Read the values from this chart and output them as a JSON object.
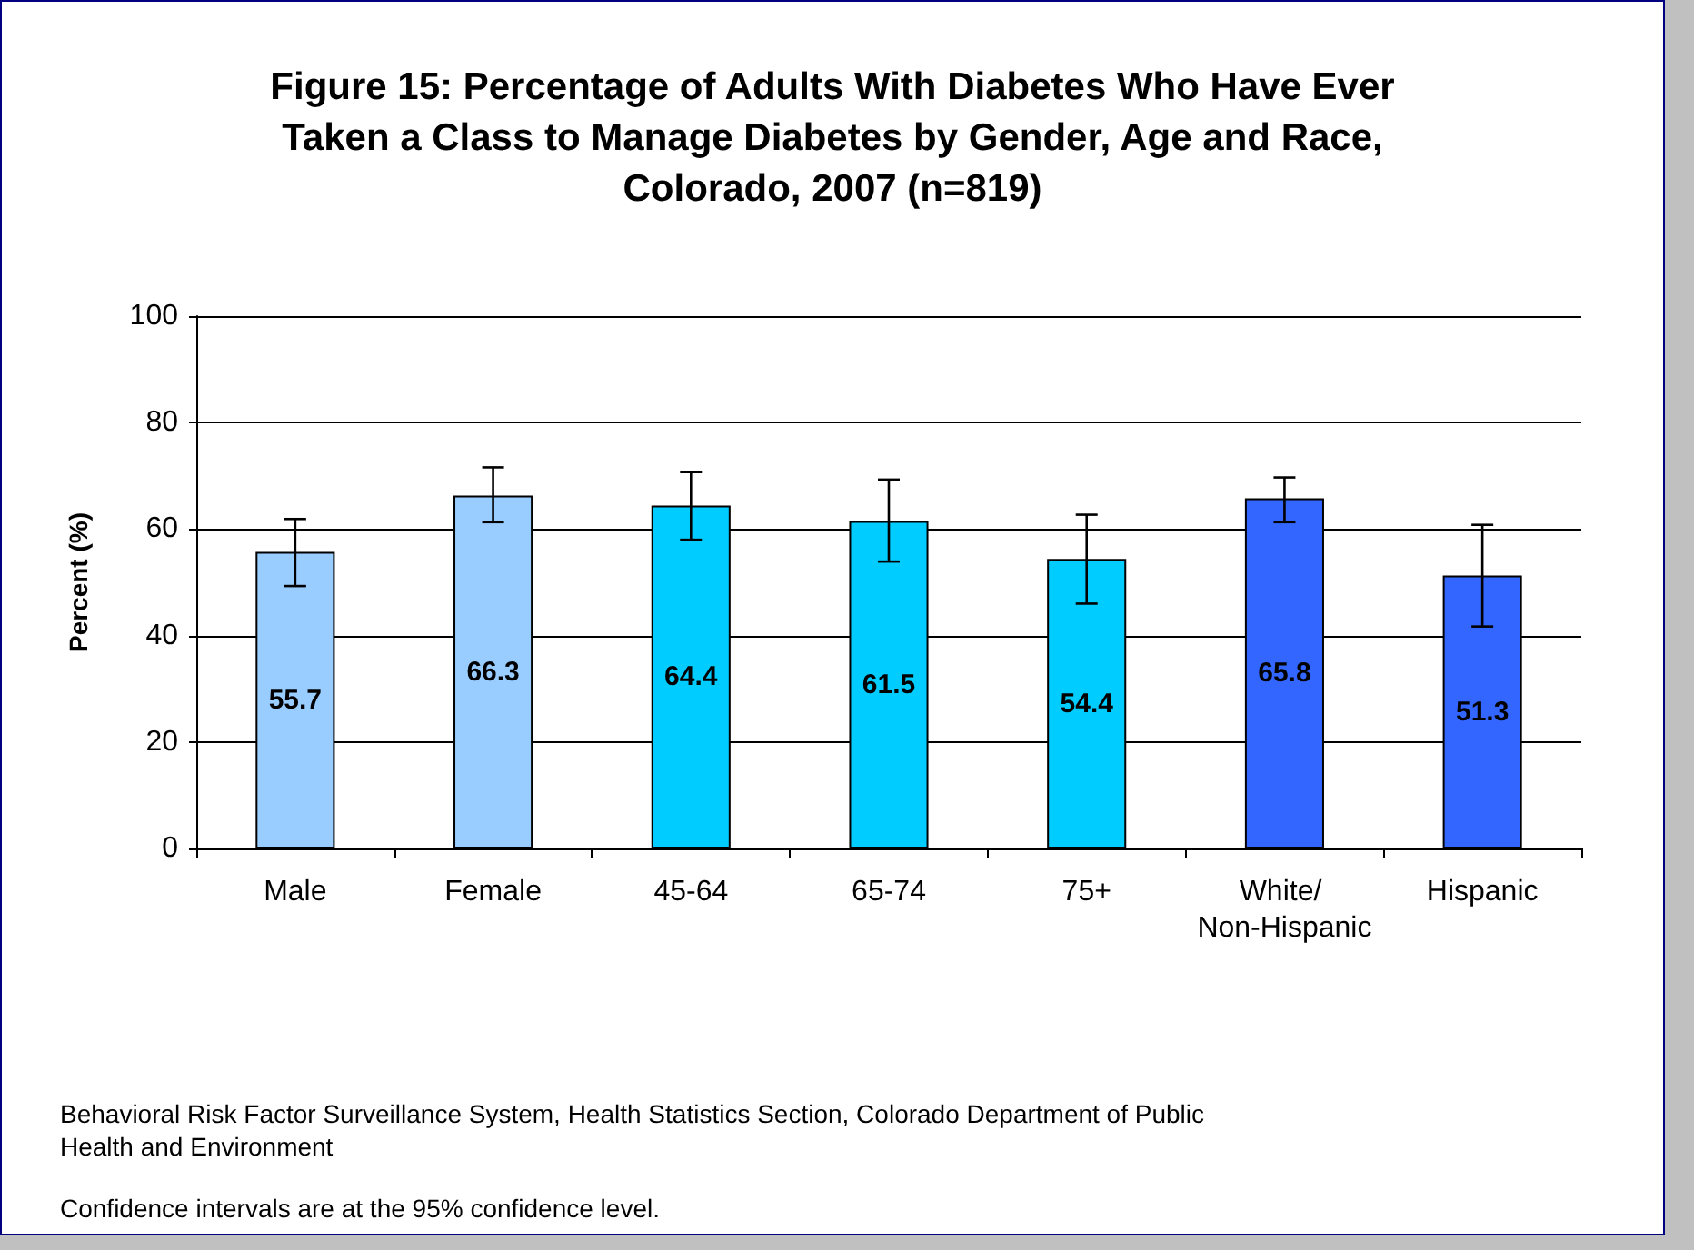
{
  "chart_data": {
    "type": "bar",
    "title": "Figure 15: Percentage of Adults With Diabetes Who Have Ever Taken a Class to Manage Diabetes by Gender, Age and Race, Colorado, 2007 (n=819)",
    "ylabel": "Percent (%)",
    "categories": [
      "Male",
      "Female",
      "45-64",
      "65-74",
      "75+",
      "White/ Non-Hispanic",
      "Hispanic"
    ],
    "values": [
      55.7,
      66.3,
      64.4,
      61.5,
      54.4,
      65.8,
      51.3
    ],
    "colors": [
      "#99ccff",
      "#99ccff",
      "#00ccff",
      "#00ccff",
      "#00ccff",
      "#3366ff",
      "#3366ff"
    ],
    "errors": [
      [
        49.3,
        61.9
      ],
      [
        61.3,
        71.6
      ],
      [
        58.0,
        70.7
      ],
      [
        53.9,
        69.3
      ],
      [
        46.0,
        62.7
      ],
      [
        61.3,
        69.7
      ],
      [
        41.7,
        60.8
      ]
    ],
    "data_labels": true,
    "ylim": [
      0,
      100
    ],
    "yticks": [
      0,
      20,
      40,
      60,
      80,
      100
    ],
    "grid": "y",
    "annotations": [
      "Behavioral Risk Factor Surveillance System, Health Statistics Section, Colorado Department of Public Health and Environment",
      "Confidence intervals are at the 95% confidence level."
    ]
  }
}
